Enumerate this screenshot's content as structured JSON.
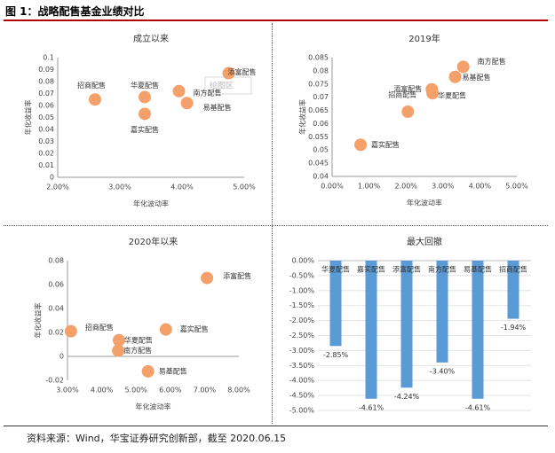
{
  "figure": {
    "title": "图 1：战略配售基金业绩对比",
    "source": "资料来源：Wind，华宝证券研究创新部，截至 2020.06.15"
  },
  "chart_data": [
    {
      "id": "since-inception",
      "type": "scatter",
      "title": "成立以来",
      "xlabel": "年化波动率",
      "ylabel": "年化收益率",
      "xlim": [
        0.02,
        0.05
      ],
      "ylim": [
        0,
        0.1
      ],
      "xticks": [
        "2.00%",
        "3.00%",
        "4.00%",
        "5.00%"
      ],
      "yticks": [
        "0",
        "0.01",
        "0.02",
        "0.03",
        "0.04",
        "0.05",
        "0.06",
        "0.07",
        "0.08",
        "0.09",
        "0.1"
      ],
      "color": "#F4A06A",
      "watermark": "绘图区",
      "points": [
        {
          "name": "招商配售",
          "x": 0.026,
          "y": 0.065
        },
        {
          "name": "华夏配售",
          "x": 0.034,
          "y": 0.067
        },
        {
          "name": "嘉实配售",
          "x": 0.034,
          "y": 0.053
        },
        {
          "name": "南方配售",
          "x": 0.0395,
          "y": 0.072
        },
        {
          "name": "易基配售",
          "x": 0.0408,
          "y": 0.062
        },
        {
          "name": "添富配售",
          "x": 0.0475,
          "y": 0.087
        }
      ]
    },
    {
      "id": "y2019",
      "type": "scatter",
      "title": "2019年",
      "xlabel": "年化波动率",
      "ylabel": "年化收益率",
      "xlim": [
        0,
        0.05
      ],
      "ylim": [
        0.04,
        0.085
      ],
      "xticks": [
        "0.00%",
        "1.00%",
        "2.00%",
        "3.00%",
        "4.00%",
        "5.00%"
      ],
      "yticks": [
        "0.04",
        "0.045",
        "0.05",
        "0.055",
        "0.06",
        "0.065",
        "0.07",
        "0.075",
        "0.08",
        "0.085"
      ],
      "color": "#F4A06A",
      "points": [
        {
          "name": "嘉实配售",
          "x": 0.0077,
          "y": 0.052
        },
        {
          "name": "招商配售",
          "x": 0.0205,
          "y": 0.0645
        },
        {
          "name": "添富配售",
          "x": 0.027,
          "y": 0.073
        },
        {
          "name": "华夏配售",
          "x": 0.0272,
          "y": 0.0715
        },
        {
          "name": "易基配售",
          "x": 0.0333,
          "y": 0.0777
        },
        {
          "name": "南方配售",
          "x": 0.0355,
          "y": 0.0815
        }
      ]
    },
    {
      "id": "since-2020",
      "type": "scatter",
      "title": "2020年以来",
      "xlabel": "年化波动率",
      "ylabel": "年化收益率",
      "xlim": [
        0.03,
        0.08
      ],
      "ylim": [
        -0.02,
        0.08
      ],
      "xticks": [
        "3.00%",
        "4.00%",
        "5.00%",
        "6.00%",
        "7.00%",
        "8.00%"
      ],
      "yticks": [
        "-0.02",
        "0",
        "0.02",
        "0.04",
        "0.06",
        "0.08"
      ],
      "color": "#F4A06A",
      "points": [
        {
          "name": "招商配售",
          "x": 0.031,
          "y": 0.021
        },
        {
          "name": "华夏配售",
          "x": 0.045,
          "y": 0.0135
        },
        {
          "name": "南方配售",
          "x": 0.0448,
          "y": 0.0048
        },
        {
          "name": "易基配售",
          "x": 0.0535,
          "y": -0.0125
        },
        {
          "name": "嘉实配售",
          "x": 0.0587,
          "y": 0.0225
        },
        {
          "name": "添富配售",
          "x": 0.0707,
          "y": 0.0655
        }
      ]
    },
    {
      "id": "max-drawdown",
      "type": "bar",
      "title": "最大回撤",
      "ylim": [
        -0.05,
        0
      ],
      "yticks": [
        "0.00%",
        "-0.50%",
        "-1.00%",
        "-1.50%",
        "-2.00%",
        "-2.50%",
        "-3.00%",
        "-3.50%",
        "-4.00%",
        "-4.50%",
        "-5.00%"
      ],
      "color": "#5B9BD5",
      "categories": [
        "华夏配售",
        "嘉实配售",
        "添富配售",
        "南方配售",
        "易基配售",
        "招商配售"
      ],
      "values": [
        -0.0285,
        -0.0461,
        -0.0424,
        -0.034,
        -0.0461,
        -0.0194
      ],
      "data_labels": [
        "-2.85%",
        "-4.61%",
        "-4.24%",
        "-3.40%",
        "-4.61%",
        "-1.94%"
      ]
    }
  ]
}
